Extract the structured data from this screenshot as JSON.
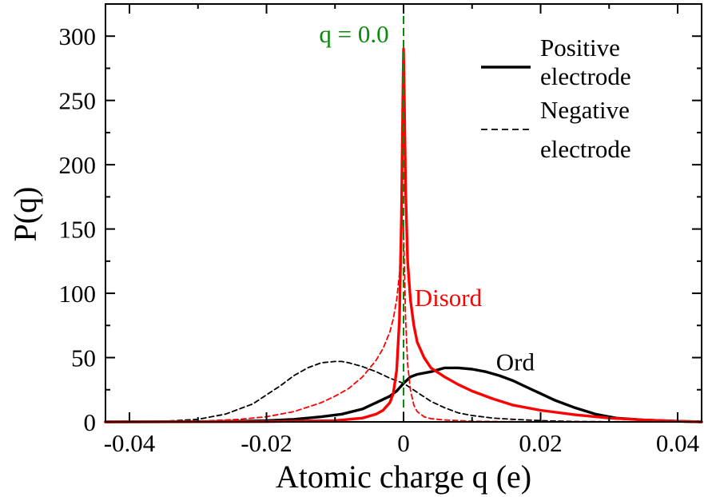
{
  "chart_data": {
    "type": "line",
    "xlabel": "Atomic charge q (e)",
    "ylabel": "P(q)",
    "xlim": [
      -0.0435,
      0.0435
    ],
    "ylim": [
      0,
      325
    ],
    "xticks": [
      -0.04,
      -0.02,
      0,
      0.02,
      0.04
    ],
    "xtick_labels": [
      "-0.04",
      "-0.02",
      "0",
      "0.02",
      "0.04"
    ],
    "yticks": [
      0,
      50,
      100,
      150,
      200,
      250,
      300
    ],
    "ytick_labels": [
      "0",
      "50",
      "100",
      "150",
      "200",
      "250",
      "300"
    ],
    "grid": false,
    "legend_position": "top-right",
    "legend": [
      {
        "line1": "Positive",
        "line2": "electrode",
        "style": "solid"
      },
      {
        "line1": "Negative",
        "line2": "electrode",
        "style": "dashed"
      }
    ],
    "vline": {
      "x": 0,
      "label": "q = 0.0",
      "color": "#0a8a0a"
    },
    "annotations": [
      {
        "text": "Disord",
        "color": "#ff0000",
        "x": 0.0016,
        "y": 90
      },
      {
        "text": "Ord",
        "color": "#000000",
        "x": 0.0135,
        "y": 40
      }
    ],
    "series": [
      {
        "group": "Ord",
        "electrode": "positive",
        "color": "#000000",
        "style": "solid",
        "x": [
          -0.0435,
          -0.03,
          -0.024,
          -0.02,
          -0.016,
          -0.012,
          -0.009,
          -0.006,
          -0.004,
          -0.002,
          -0.001,
          0,
          0.001,
          0.002,
          0.004,
          0.006,
          0.008,
          0.01,
          0.012,
          0.014,
          0.016,
          0.018,
          0.02,
          0.022,
          0.025,
          0.028,
          0.031,
          0.035,
          0.04,
          0.0435
        ],
        "y": [
          0,
          0.2,
          0.5,
          1,
          2,
          4,
          6,
          10,
          15,
          20,
          24,
          30,
          35,
          37,
          39,
          42,
          42,
          41,
          39,
          36,
          32,
          27,
          22,
          17,
          11,
          6,
          3,
          1.5,
          0.5,
          0
        ]
      },
      {
        "group": "Ord",
        "electrode": "negative",
        "color": "#000000",
        "style": "dashed",
        "x": [
          -0.0435,
          -0.035,
          -0.03,
          -0.026,
          -0.022,
          -0.02,
          -0.018,
          -0.016,
          -0.014,
          -0.012,
          -0.01,
          -0.009,
          -0.008,
          -0.006,
          -0.004,
          -0.002,
          0,
          0.002,
          0.004,
          0.006,
          0.008,
          0.01,
          0.013,
          0.016,
          0.02,
          0.025,
          0.03,
          0.0435
        ],
        "y": [
          0,
          0.5,
          2,
          6,
          14,
          21,
          28,
          36,
          42,
          46,
          47,
          47,
          46,
          43,
          39,
          34,
          30,
          23,
          16,
          11,
          7,
          5,
          3,
          2,
          1,
          0.3,
          0.1,
          0
        ]
      },
      {
        "group": "Disord",
        "electrode": "positive",
        "color": "#ff0000",
        "style": "solid",
        "x": [
          -0.0435,
          -0.02,
          -0.01,
          -0.006,
          -0.004,
          -0.003,
          -0.002,
          -0.0015,
          -0.001,
          -0.0006,
          -0.0003,
          -0.0001,
          0,
          0.0001,
          0.0003,
          0.0006,
          0.001,
          0.0015,
          0.002,
          0.003,
          0.004,
          0.006,
          0.008,
          0.01,
          0.013,
          0.016,
          0.02,
          0.025,
          0.03,
          0.035,
          0.04,
          0.0435
        ],
        "y": [
          0,
          0.2,
          1,
          3,
          6,
          9,
          15,
          22,
          40,
          80,
          160,
          250,
          290,
          255,
          180,
          125,
          95,
          75,
          62,
          50,
          42,
          35,
          29,
          24,
          18,
          13,
          9,
          5.5,
          3,
          1.5,
          0.5,
          0
        ]
      },
      {
        "group": "Disord",
        "electrode": "negative",
        "color": "#ff0000",
        "style": "dashed",
        "x": [
          -0.0435,
          -0.03,
          -0.024,
          -0.02,
          -0.016,
          -0.012,
          -0.01,
          -0.008,
          -0.006,
          -0.004,
          -0.003,
          -0.002,
          -0.0015,
          -0.001,
          -0.0006,
          -0.0003,
          0,
          0.0003,
          0.0006,
          0.001,
          0.0015,
          0.002,
          0.003,
          0.004,
          0.006,
          0.008,
          0.01,
          0.015,
          0.0435
        ],
        "y": [
          0,
          0.5,
          2,
          4,
          8,
          15,
          20,
          26,
          35,
          48,
          57,
          70,
          80,
          95,
          115,
          160,
          150,
          80,
          45,
          25,
          13,
          8,
          4,
          2.5,
          1.5,
          1,
          0.5,
          0.2,
          0
        ]
      }
    ]
  }
}
